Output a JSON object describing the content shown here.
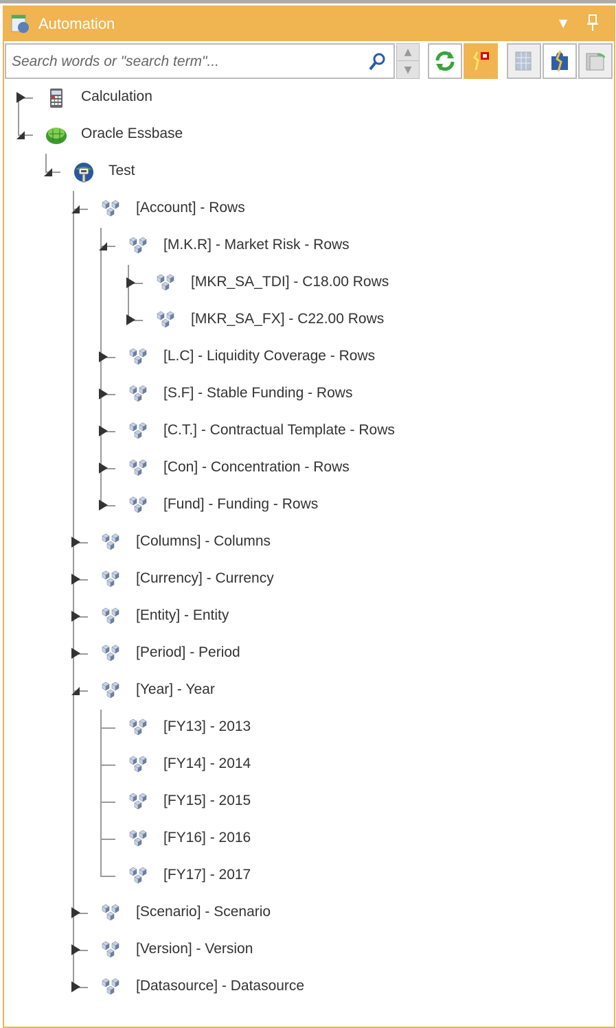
{
  "header": {
    "title": "Automation",
    "app_icon": "automation-icon",
    "dropdown_icon": "triangle-down-icon",
    "pin_icon": "pin-icon",
    "accent": "#f0b450"
  },
  "search": {
    "placeholder": "Search words or \"search term\"...",
    "value": ""
  },
  "toolbar": [
    {
      "name": "refresh-button",
      "icon": "refresh-icon"
    },
    {
      "name": "flag-button",
      "icon": "flag-icon",
      "active": true
    },
    {
      "name": "grid-button",
      "icon": "grid-icon",
      "disabled": true
    },
    {
      "name": "puzzle-button",
      "icon": "puzzle-icon"
    },
    {
      "name": "export-grid-button",
      "icon": "export-grid-icon",
      "disabled": true
    }
  ],
  "tree": [
    {
      "label": "Calculation",
      "level": 0,
      "state": "collapsed",
      "icon": "calculator-icon"
    },
    {
      "label": "Oracle Essbase",
      "level": 0,
      "state": "expanded",
      "icon": "essbase-cube-icon"
    },
    {
      "label": "Test",
      "level": 1,
      "state": "expanded",
      "icon": "connection-globe-icon"
    },
    {
      "label": "[Account] - Rows",
      "level": 2,
      "state": "expanded",
      "icon": "dimension-icon"
    },
    {
      "label": "[M.K.R] - Market Risk - Rows",
      "level": 3,
      "state": "expanded",
      "icon": "dimension-icon"
    },
    {
      "label": "[MKR_SA_TDI] - C18.00 Rows",
      "level": 4,
      "state": "collapsed",
      "icon": "dimension-icon"
    },
    {
      "label": "[MKR_SA_FX] - C22.00 Rows",
      "level": 4,
      "state": "collapsed",
      "icon": "dimension-icon"
    },
    {
      "label": "[L.C] - Liquidity Coverage - Rows",
      "level": 3,
      "state": "collapsed",
      "icon": "dimension-icon"
    },
    {
      "label": "[S.F] - Stable Funding - Rows",
      "level": 3,
      "state": "collapsed",
      "icon": "dimension-icon"
    },
    {
      "label": "[C.T.] - Contractual Template - Rows",
      "level": 3,
      "state": "collapsed",
      "icon": "dimension-icon"
    },
    {
      "label": "[Con] - Concentration - Rows",
      "level": 3,
      "state": "collapsed",
      "icon": "dimension-icon"
    },
    {
      "label": "[Fund] - Funding - Rows",
      "level": 3,
      "state": "collapsed",
      "icon": "dimension-icon"
    },
    {
      "label": "[Columns] - Columns",
      "level": 2,
      "state": "collapsed",
      "icon": "dimension-icon"
    },
    {
      "label": "[Currency] - Currency",
      "level": 2,
      "state": "collapsed",
      "icon": "dimension-icon"
    },
    {
      "label": "[Entity] - Entity",
      "level": 2,
      "state": "collapsed",
      "icon": "dimension-icon"
    },
    {
      "label": "[Period] - Period",
      "level": 2,
      "state": "collapsed",
      "icon": "dimension-icon"
    },
    {
      "label": "[Year] - Year",
      "level": 2,
      "state": "expanded",
      "icon": "dimension-icon"
    },
    {
      "label": "[FY13] - 2013",
      "level": 3,
      "state": "leaf",
      "icon": "dimension-icon"
    },
    {
      "label": "[FY14] - 2014",
      "level": 3,
      "state": "leaf",
      "icon": "dimension-icon"
    },
    {
      "label": "[FY15] - 2015",
      "level": 3,
      "state": "leaf",
      "icon": "dimension-icon"
    },
    {
      "label": "[FY16] - 2016",
      "level": 3,
      "state": "leaf",
      "icon": "dimension-icon"
    },
    {
      "label": "[FY17] - 2017",
      "level": 3,
      "state": "leaf",
      "icon": "dimension-icon"
    },
    {
      "label": "[Scenario] - Scenario",
      "level": 2,
      "state": "collapsed",
      "icon": "dimension-icon"
    },
    {
      "label": "[Version] - Version",
      "level": 2,
      "state": "collapsed",
      "icon": "dimension-icon"
    },
    {
      "label": "[Datasource] - Datasource",
      "level": 2,
      "state": "collapsed",
      "icon": "dimension-icon"
    }
  ]
}
